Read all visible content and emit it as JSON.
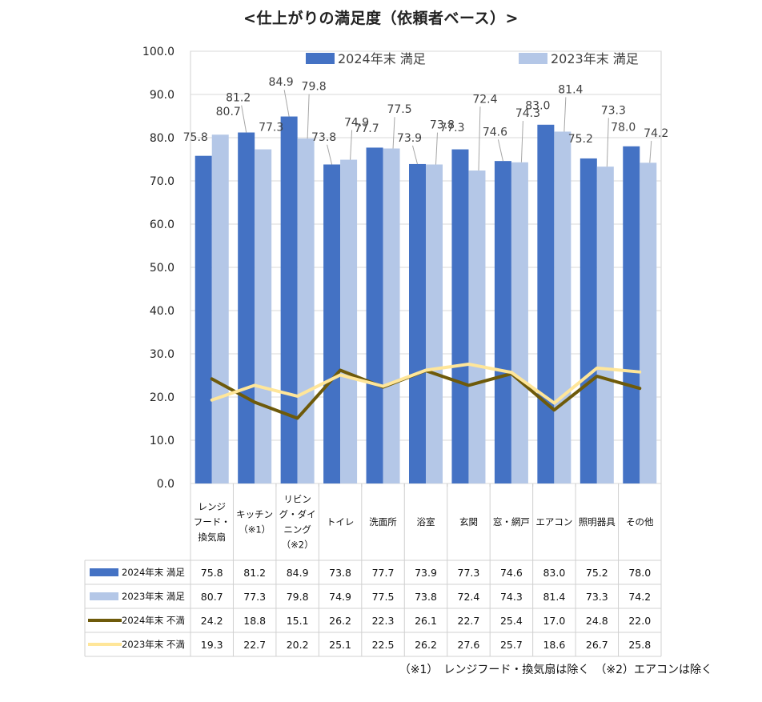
{
  "title": "<仕上がりの満足度（依頼者ベース）>",
  "footnote": "（※1）　レンジフード・換気扇は除く　（※2）エアコンは除く",
  "colors": {
    "satisfied_2024": "#4472C4",
    "satisfied_2023": "#B4C7E7",
    "dissatisfied_2024": "#6E5A0A",
    "dissatisfied_2023": "#FFE699"
  },
  "chart_data": {
    "type": "bar",
    "title": "<仕上がりの満足度（依頼者ベース）>",
    "categories": [
      [
        "レンジ",
        "フード・",
        "換気扇"
      ],
      [
        "キッチン",
        "（※1）"
      ],
      [
        "リビン",
        "グ・ダイ",
        "ニング",
        "（※2）"
      ],
      [
        "トイレ"
      ],
      [
        "洗面所"
      ],
      [
        "浴室"
      ],
      [
        "玄関"
      ],
      [
        "窓・網戸"
      ],
      [
        "エアコン"
      ],
      [
        "照明器具"
      ],
      [
        "その他"
      ]
    ],
    "ylim": [
      0,
      100
    ],
    "yticks": [
      "0.0",
      "10.0",
      "20.0",
      "30.0",
      "40.0",
      "50.0",
      "60.0",
      "70.0",
      "80.0",
      "90.0",
      "100.0"
    ],
    "grid": true,
    "legend_position": "top",
    "series": [
      {
        "name": "2024年末 満足",
        "kind": "bar",
        "color": "#4472C4",
        "values": [
          75.8,
          81.2,
          84.9,
          73.8,
          77.7,
          73.9,
          77.3,
          74.6,
          83.0,
          75.2,
          78.0
        ]
      },
      {
        "name": "2023年末 満足",
        "kind": "bar",
        "color": "#B4C7E7",
        "values": [
          80.7,
          77.3,
          79.8,
          74.9,
          77.5,
          73.8,
          72.4,
          74.3,
          81.4,
          73.3,
          74.2
        ]
      },
      {
        "name": "2024年末 不満",
        "kind": "line",
        "color": "#6E5A0A",
        "values": [
          24.2,
          18.8,
          15.1,
          26.2,
          22.3,
          26.1,
          22.7,
          25.4,
          17.0,
          24.8,
          22.0
        ]
      },
      {
        "name": "2023年末 不満",
        "kind": "line",
        "color": "#FFE699",
        "values": [
          19.3,
          22.7,
          20.2,
          25.1,
          22.5,
          26.2,
          27.6,
          25.7,
          18.6,
          26.7,
          25.8
        ]
      }
    ],
    "legend_top": [
      "2024年末 満足",
      "2023年末 満足"
    ],
    "table_values": [
      [
        "75.8",
        "81.2",
        "84.9",
        "73.8",
        "77.7",
        "73.9",
        "77.3",
        "74.6",
        "83.0",
        "75.2",
        "78.0"
      ],
      [
        "80.7",
        "77.3",
        "79.8",
        "74.9",
        "77.5",
        "73.8",
        "72.4",
        "74.3",
        "81.4",
        "73.3",
        "74.2"
      ],
      [
        "24.2",
        "18.8",
        "15.1",
        "26.2",
        "22.3",
        "26.1",
        "22.7",
        "25.4",
        "17.0",
        "24.8",
        "22.0"
      ],
      [
        "19.3",
        "22.7",
        "20.2",
        "25.1",
        "22.5",
        "26.2",
        "27.6",
        "25.7",
        "18.6",
        "26.7",
        "25.8"
      ]
    ]
  }
}
